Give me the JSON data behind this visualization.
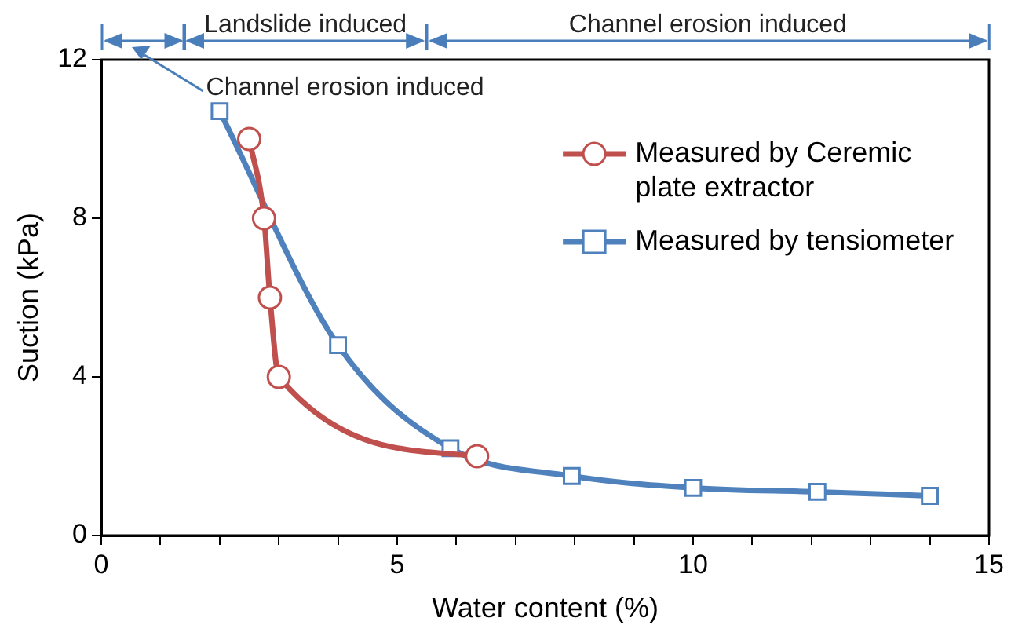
{
  "chart_data": {
    "type": "line",
    "xlabel": "Water content (%)",
    "ylabel": "Suction (kPa)",
    "xlim": [
      0,
      15
    ],
    "ylim": [
      0,
      12
    ],
    "xticks": [
      0,
      {
        "value": 1,
        "label": null
      },
      {
        "value": 2,
        "label": null
      },
      {
        "value": 3,
        "label": null
      },
      {
        "value": 4,
        "label": null
      },
      5,
      {
        "value": 6,
        "label": null
      },
      {
        "value": 7,
        "label": null
      },
      {
        "value": 8,
        "label": null
      },
      {
        "value": 9,
        "label": null
      },
      10,
      {
        "value": 11,
        "label": null
      },
      {
        "value": 12,
        "label": null
      },
      {
        "value": 13,
        "label": null
      },
      {
        "value": 14,
        "label": null
      },
      15
    ],
    "yticks": [
      0,
      4,
      8,
      12
    ],
    "grid": false,
    "legend": "right",
    "line_style": "solid",
    "series": [
      {
        "name": "Measured by Ceremic plate extractor",
        "color": "#c0504d",
        "marker": "circle",
        "x": [
          2.5,
          2.75,
          2.85,
          3.0,
          6.35
        ],
        "values": [
          10,
          8,
          6,
          4,
          2.0
        ]
      },
      {
        "name": "Measured by tensiometer",
        "color": "#4f81bd",
        "marker": "square",
        "x": [
          2.0,
          4.0,
          5.9,
          7.95,
          10.0,
          12.1,
          14.0
        ],
        "values": [
          10.7,
          4.8,
          2.2,
          1.5,
          1.2,
          1.1,
          1.0
        ]
      }
    ],
    "annotations": [
      "Landslide induced",
      "Channel erosion induced",
      "Channel erosion induced"
    ]
  }
}
